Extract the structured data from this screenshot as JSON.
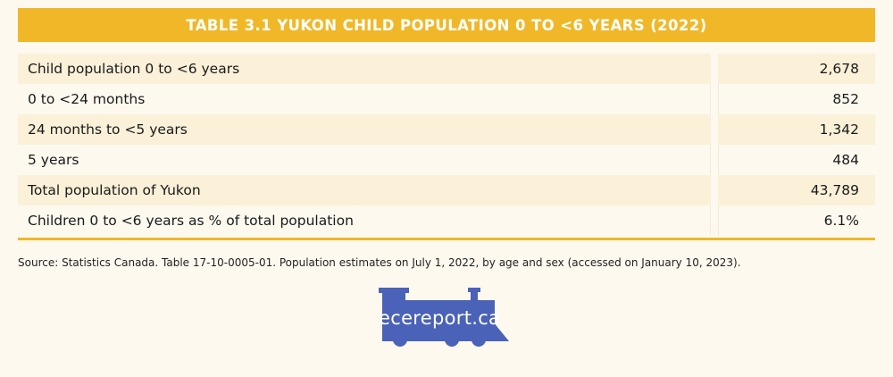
{
  "title": "TABLE 3.1 YUKON CHILD POPULATION 0 TO <6 YEARS (2022)",
  "rows": [
    {
      "label": "Child population 0 to <6 years",
      "value": "2,678"
    },
    {
      "label": "0 to <24 months",
      "value": "852"
    },
    {
      "label": "24 months to <5 years",
      "value": "1,342"
    },
    {
      "label": "5 years",
      "value": "484"
    },
    {
      "label": "Total population of Yukon",
      "value": "43,789"
    },
    {
      "label": "Children 0 to <6 years as % of total population",
      "value": "6.1%"
    }
  ],
  "source": "Source: Statistics Canada. Table 17-10-0005-01. Population estimates on July 1, 2022, by age and sex (accessed on January 10, 2023).",
  "logo": {
    "text": "ecereport.ca",
    "icon": "train-locomotive-icon",
    "color": "#4a62b8"
  },
  "colors": {
    "accent": "#f0b828",
    "background": "#fdf9ef",
    "row_shade": "#fbf0d8"
  }
}
